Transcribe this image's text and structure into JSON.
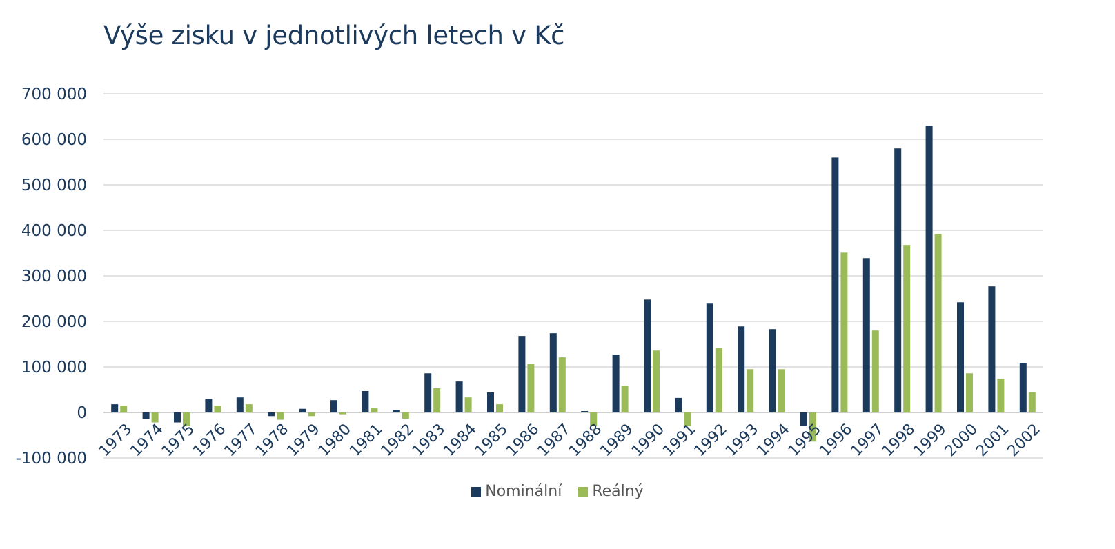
{
  "chart_data": {
    "type": "bar",
    "title": "Výše zisku v jednotlivých letech v Kč",
    "categories": [
      "1973",
      "1974",
      "1975",
      "1976",
      "1977",
      "1978",
      "1979",
      "1980",
      "1981",
      "1982",
      "1983",
      "1984",
      "1985",
      "1986",
      "1987",
      "1988",
      "1989",
      "1990",
      "1991",
      "1992",
      "1993",
      "1994",
      "1995",
      "1996",
      "1997",
      "1998",
      "1999",
      "2000",
      "2001",
      "2002"
    ],
    "series": [
      {
        "name": "Nominální",
        "color": "#1b3a5c",
        "values": [
          18000,
          -15000,
          -22000,
          30000,
          33000,
          -8000,
          8000,
          27000,
          47000,
          6000,
          86000,
          68000,
          44000,
          168000,
          174000,
          3000,
          127000,
          248000,
          32000,
          239000,
          189000,
          183000,
          -30000,
          560000,
          339000,
          580000,
          630000,
          242000,
          277000,
          109000
        ]
      },
      {
        "name": "Reálný",
        "color": "#9bbb59",
        "values": [
          15000,
          -22000,
          -30000,
          15000,
          18000,
          -16000,
          -8000,
          -4000,
          9000,
          -14000,
          53000,
          33000,
          18000,
          106000,
          121000,
          -30000,
          59000,
          136000,
          -30000,
          142000,
          95000,
          95000,
          -64000,
          351000,
          180000,
          368000,
          392000,
          86000,
          74000,
          45000
        ]
      }
    ],
    "ylim": [
      -100000,
      700000
    ],
    "yticks": [
      -100000,
      0,
      100000,
      200000,
      300000,
      400000,
      500000,
      600000,
      700000
    ],
    "ytick_labels": [
      "-100 000",
      "0",
      "100 000",
      "200 000",
      "300 000",
      "400 000",
      "500 000",
      "600 000",
      "700 000"
    ],
    "xlabel": "",
    "ylabel": "",
    "grid": true,
    "legend_position": "bottom"
  }
}
